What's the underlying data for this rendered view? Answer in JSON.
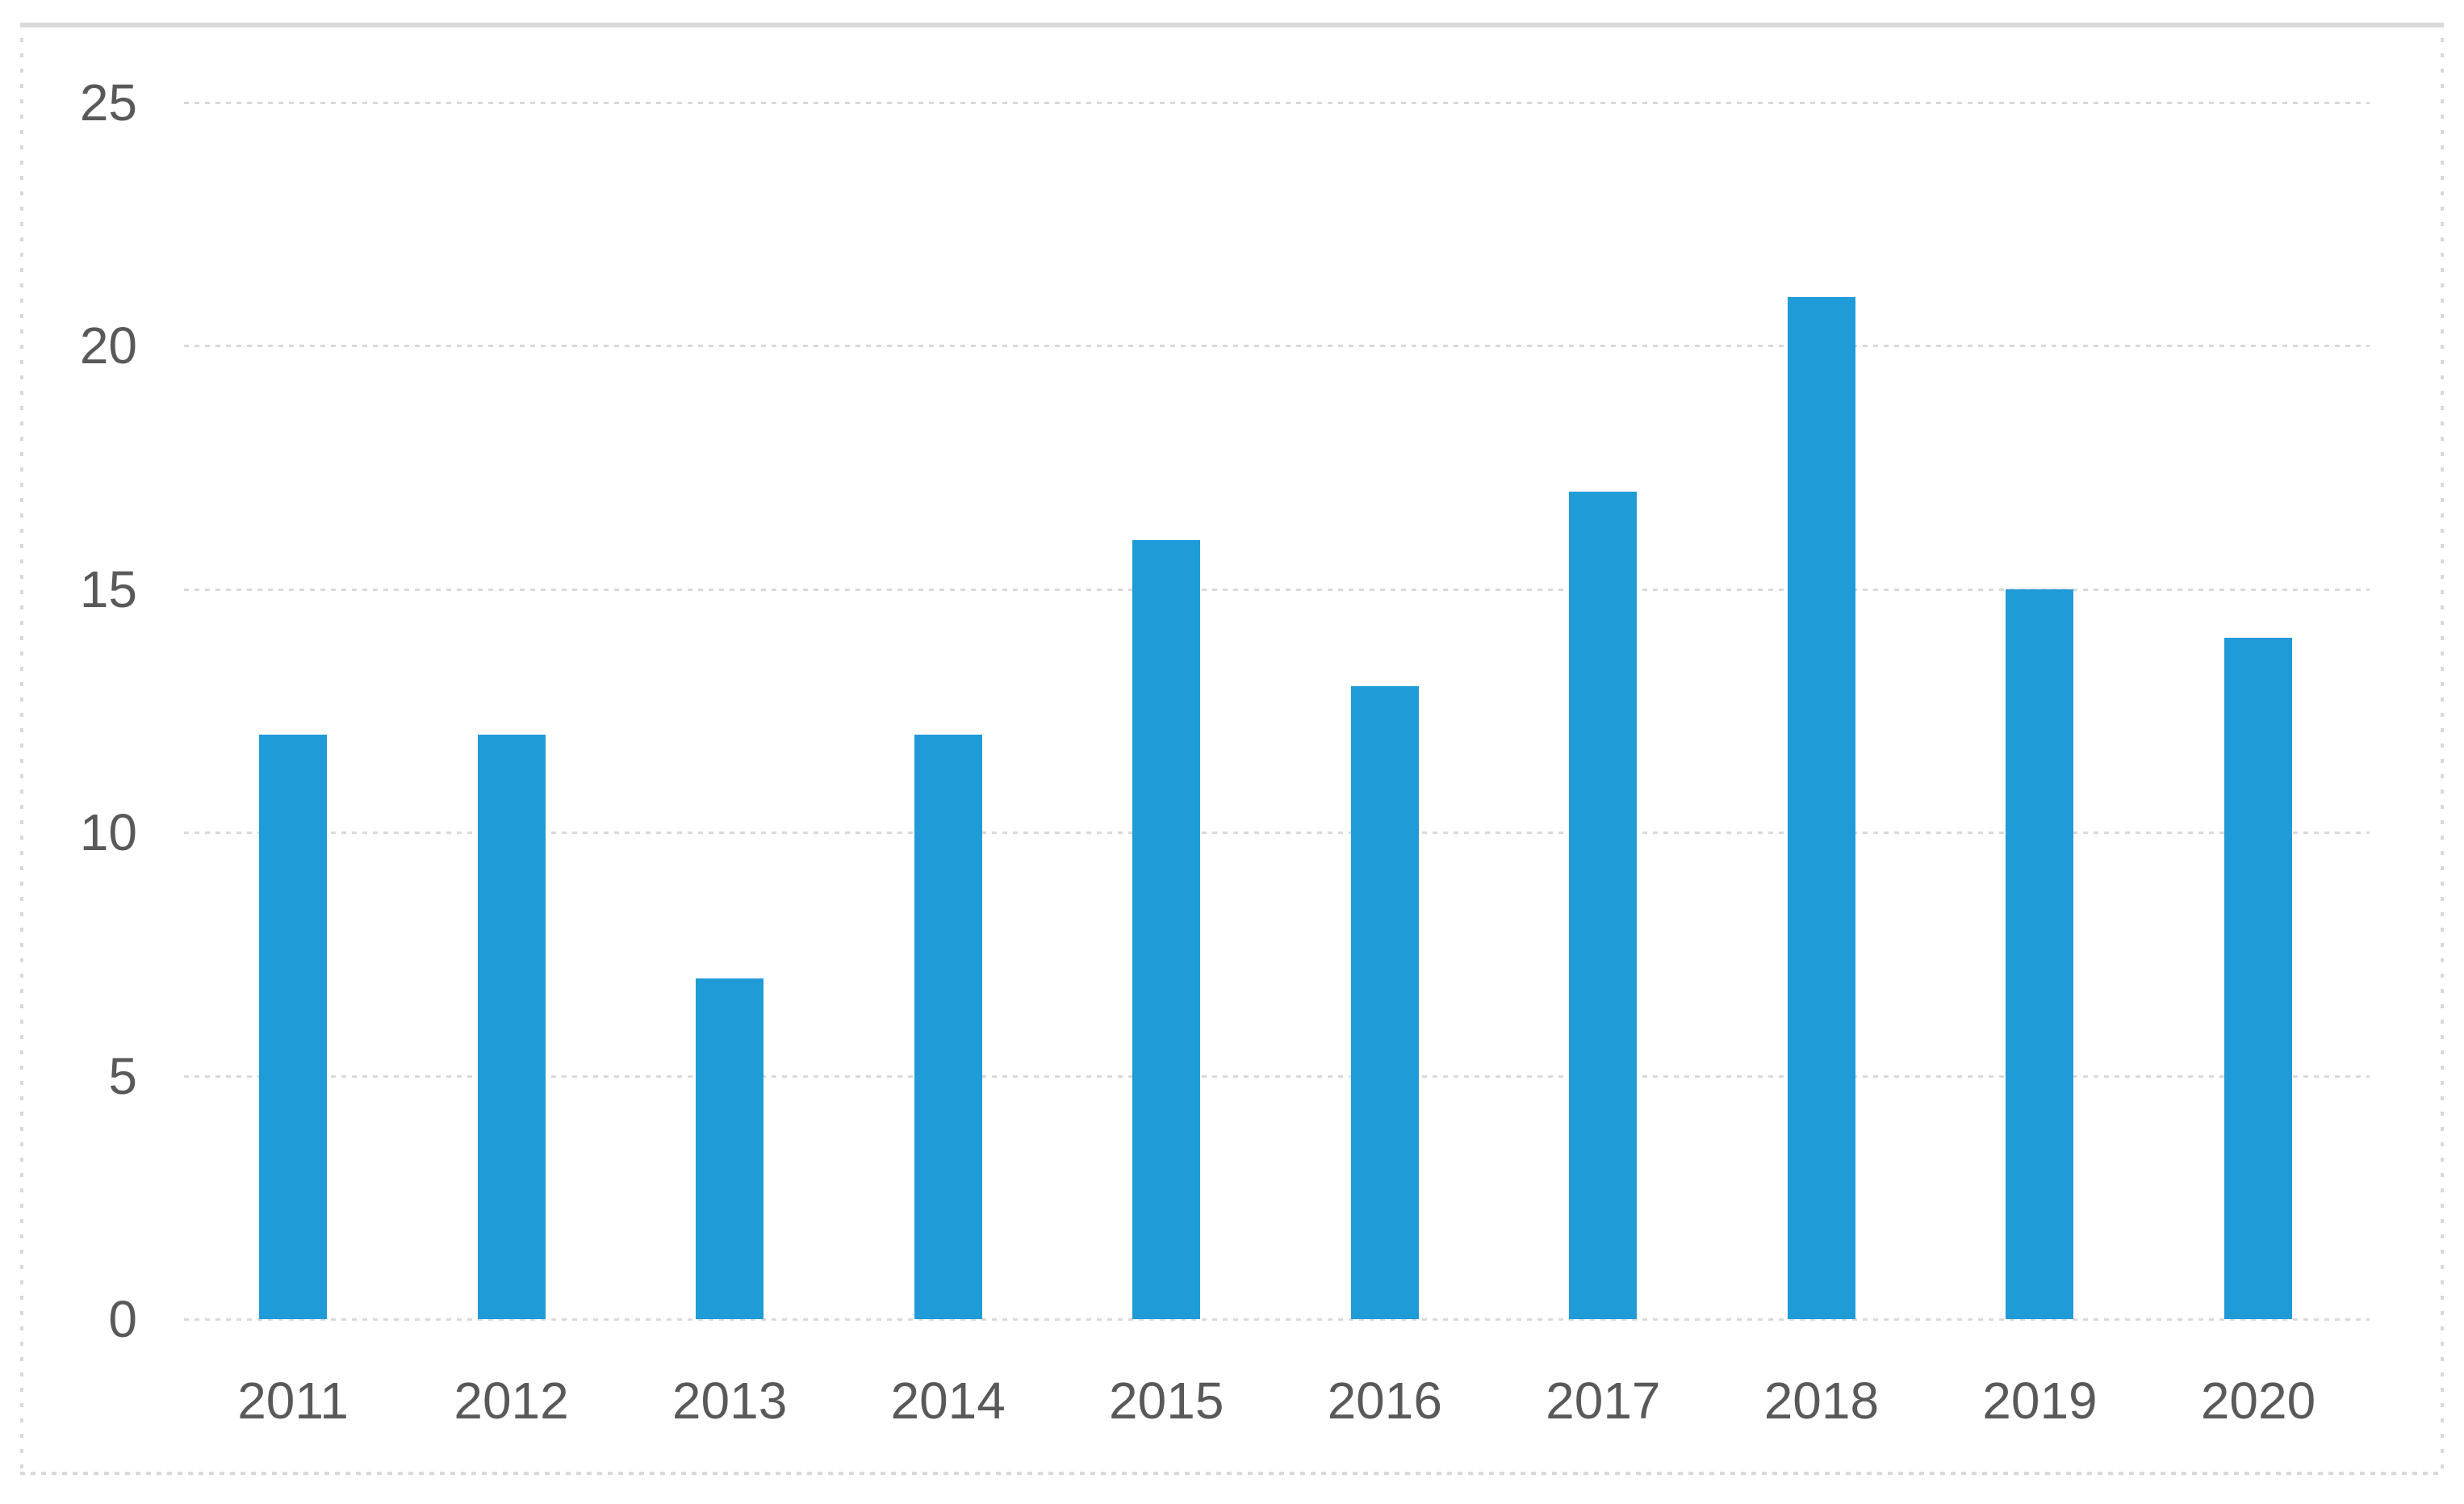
{
  "chart_data": {
    "type": "bar",
    "title": "",
    "xlabel": "",
    "ylabel": "",
    "categories": [
      "2011",
      "2012",
      "2013",
      "2014",
      "2015",
      "2016",
      "2017",
      "2018",
      "2019",
      "2020"
    ],
    "values": [
      12,
      12,
      7,
      12,
      16,
      13,
      17,
      21,
      15,
      14
    ],
    "ylim": [
      0,
      25
    ],
    "yticks": [
      0,
      5,
      10,
      15,
      20,
      25
    ],
    "grid": "horizontal dotted gridlines, on",
    "legend": "none",
    "colors": {
      "bar_fill": "#1f9bd7",
      "tick_label_text": "#595959",
      "gridline": "#d9d9d9",
      "frame_border": "#d9d9d9",
      "background": "#ffffff"
    }
  }
}
